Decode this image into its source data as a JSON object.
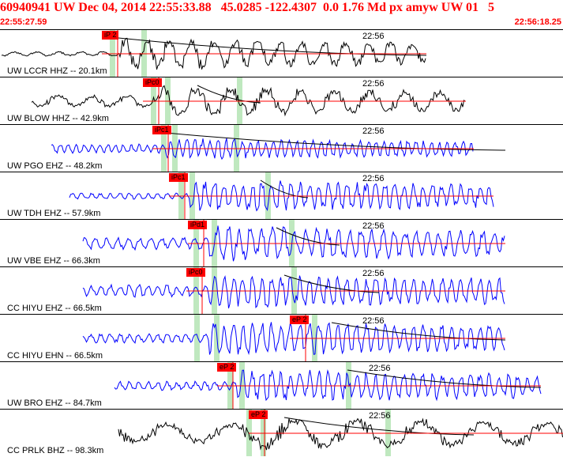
{
  "header": {
    "title": "60940941 UW Dec 04, 2014 22:55:33.88   45.0285 -122.4307  0.0 1.76 Md px amyw UW 01   5",
    "time_start": "22:55:27.59",
    "time_end": "22:56:18.25"
  },
  "colors": {
    "accent": "#ff0000",
    "trace_blue": "#0000ff",
    "trace_black": "#000000",
    "coda_green": "#bfe8bf"
  },
  "traces": [
    {
      "channel": "UW LCCR HHZ -- 20.1km",
      "minute": "22:56",
      "pick": "iP 2",
      "color": "#000000"
    },
    {
      "channel": "UW BLOW HHZ -- 42.9km",
      "minute": "22:56",
      "pick": "iPc0",
      "color": "#000000"
    },
    {
      "channel": "UW PGO EHZ -- 48.2km",
      "minute": "22:56",
      "pick": "iPc1",
      "color": "#0000ff"
    },
    {
      "channel": "UW TDH EHZ -- 57.9km",
      "minute": "22:56",
      "pick": "iPc1",
      "color": "#0000ff"
    },
    {
      "channel": "UW VBE EHZ -- 66.3km",
      "minute": "22:56",
      "pick": "iPd1",
      "color": "#0000ff"
    },
    {
      "channel": "CC HIYU EHZ -- 66.5km",
      "minute": "22:56",
      "pick": "iPc0",
      "color": "#0000ff"
    },
    {
      "channel": "CC HIYU EHN -- 66.5km",
      "minute": "22:56",
      "pick": "eP 2",
      "color": "#0000ff"
    },
    {
      "channel": "UW BRO EHZ -- 84.7km",
      "minute": "22:56",
      "pick": "eP 2",
      "color": "#0000ff"
    },
    {
      "channel": "CC PRLK BHZ -- 98.3km",
      "minute": "22:56",
      "pick": "eP 2",
      "color": "#000000"
    }
  ]
}
